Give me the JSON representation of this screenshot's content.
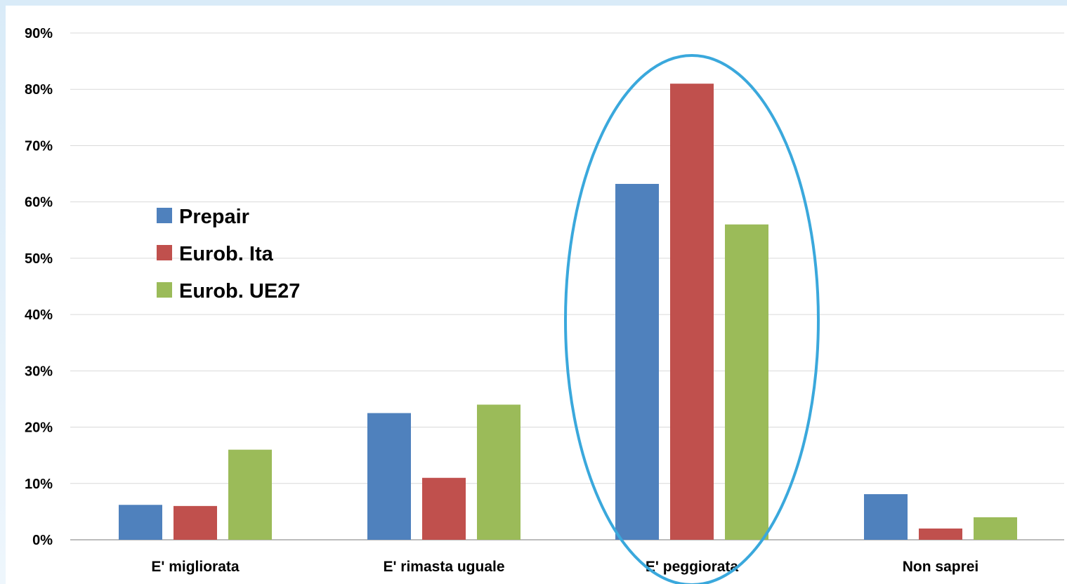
{
  "chart_data": {
    "type": "bar",
    "categories": [
      "E' migliorata",
      "E' rimasta uguale",
      "E' peggiorata",
      "Non saprei"
    ],
    "series": [
      {
        "name": "Prepair",
        "values": [
          6.2,
          22.5,
          63.2,
          8.1
        ]
      },
      {
        "name": "Eurob. Ita",
        "values": [
          6.0,
          11.0,
          81.0,
          2.0
        ]
      },
      {
        "name": "Eurob. UE27",
        "values": [
          16.0,
          24.0,
          56.0,
          4.0
        ]
      }
    ],
    "colors": [
      "#4f81bd",
      "#c0504d",
      "#9bbb59"
    ],
    "ylim": [
      0,
      90
    ],
    "yticks": [
      0,
      10,
      20,
      30,
      40,
      50,
      60,
      70,
      80,
      90
    ],
    "ytick_labels": [
      "0%",
      "10%",
      "20%",
      "30%",
      "40%",
      "50%",
      "60%",
      "70%",
      "80%",
      "90%"
    ],
    "grid": true,
    "legend_position": "left-middle",
    "highlight": {
      "category": "E' peggiorata",
      "shape": "ellipse",
      "color": "#3aa8dc"
    },
    "title": "",
    "xlabel": "",
    "ylabel": ""
  }
}
